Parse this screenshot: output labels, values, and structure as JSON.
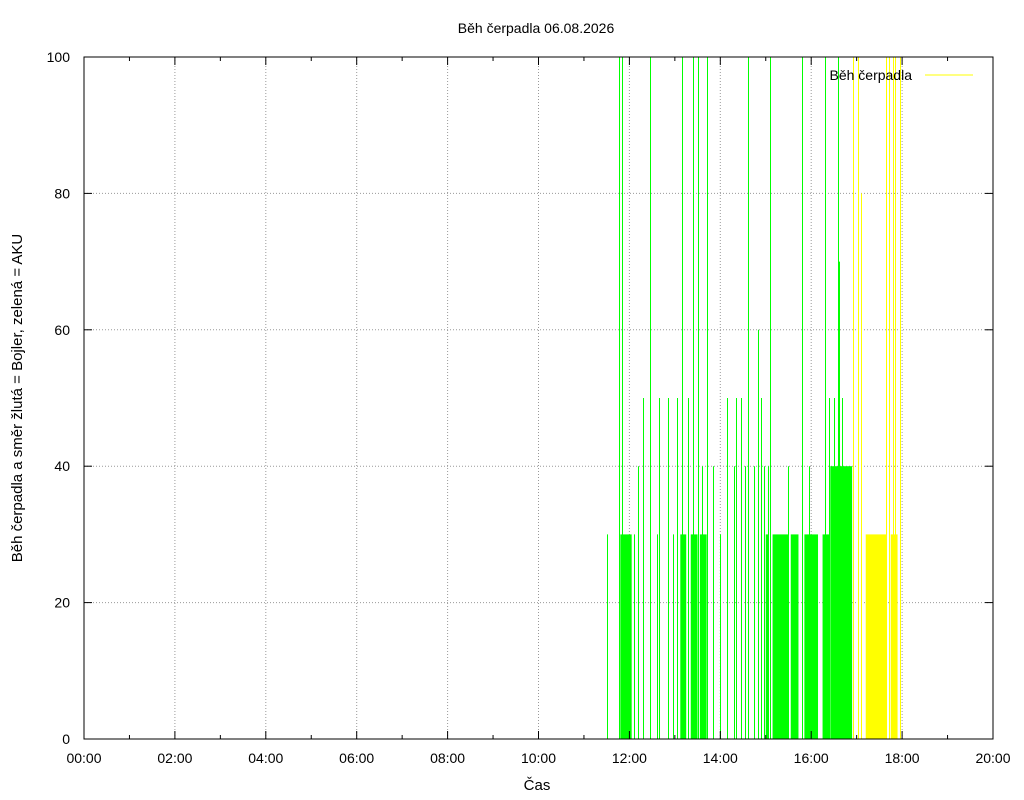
{
  "chart_data": {
    "type": "bar",
    "title": "Běh čerpadla 06.08.2026",
    "xlabel": "Čas",
    "ylabel": "Běh čerpadla a směr žlutá = Bojler, zelená = AKU",
    "xlim_hours": [
      0,
      20
    ],
    "ylim": [
      0,
      100
    ],
    "x_ticks": [
      "00:00",
      "02:00",
      "04:00",
      "06:00",
      "08:00",
      "10:00",
      "12:00",
      "14:00",
      "16:00",
      "18:00",
      "20:00"
    ],
    "y_ticks": [
      "0",
      "20",
      "40",
      "60",
      "80",
      "100"
    ],
    "grid": true,
    "legend": {
      "position": "top-right",
      "label": "Běh čerpadla",
      "line_color": "#ffff00"
    },
    "colors": {
      "aku": "#00ff00",
      "bojler": "#ffff00",
      "grid": "#999999"
    },
    "series": [
      {
        "name": "zelená = AKU",
        "color": "#00ff00",
        "spikes": [
          [
            11.5,
            30
          ],
          [
            11.78,
            100
          ],
          [
            11.84,
            100
          ],
          [
            12.1,
            30
          ],
          [
            12.2,
            40
          ],
          [
            12.3,
            50
          ],
          [
            12.45,
            100
          ],
          [
            12.6,
            30
          ],
          [
            12.65,
            50
          ],
          [
            12.85,
            50
          ],
          [
            12.95,
            30
          ],
          [
            13.05,
            50
          ],
          [
            13.15,
            100
          ],
          [
            13.3,
            50
          ],
          [
            13.4,
            100
          ],
          [
            13.5,
            100
          ],
          [
            13.6,
            40
          ],
          [
            13.7,
            100
          ],
          [
            13.85,
            40
          ],
          [
            14.0,
            30
          ],
          [
            14.15,
            50
          ],
          [
            14.3,
            40
          ],
          [
            14.35,
            50
          ],
          [
            14.45,
            50
          ],
          [
            14.55,
            40
          ],
          [
            14.62,
            100
          ],
          [
            14.75,
            40
          ],
          [
            14.82,
            60
          ],
          [
            14.9,
            50
          ],
          [
            14.97,
            40
          ],
          [
            15.05,
            40
          ],
          [
            15.1,
            100
          ],
          [
            15.5,
            40
          ],
          [
            15.8,
            100
          ],
          [
            15.95,
            40
          ],
          [
            16.3,
            100
          ],
          [
            16.4,
            50
          ],
          [
            16.5,
            50
          ],
          [
            16.58,
            100
          ],
          [
            16.62,
            70
          ],
          [
            16.68,
            50
          ]
        ],
        "blocks": [
          [
            11.8,
            12.05,
            30
          ],
          [
            13.12,
            13.25,
            30
          ],
          [
            13.35,
            13.5,
            30
          ],
          [
            13.55,
            13.7,
            30
          ],
          [
            15.0,
            15.05,
            30
          ],
          [
            15.15,
            15.5,
            30
          ],
          [
            15.55,
            15.72,
            30
          ],
          [
            15.85,
            16.15,
            30
          ],
          [
            16.25,
            16.4,
            30
          ],
          [
            16.42,
            16.9,
            40
          ]
        ]
      },
      {
        "name": "žlutá = Bojler",
        "color": "#ffff00",
        "spikes": [
          [
            16.93,
            100
          ],
          [
            17.02,
            100
          ],
          [
            17.1,
            80
          ],
          [
            17.65,
            100
          ],
          [
            17.72,
            100
          ],
          [
            17.8,
            100
          ],
          [
            17.85,
            100
          ],
          [
            17.95,
            100
          ]
        ],
        "blocks": [
          [
            17.2,
            17.65,
            30
          ],
          [
            17.75,
            17.9,
            30
          ]
        ]
      }
    ]
  }
}
